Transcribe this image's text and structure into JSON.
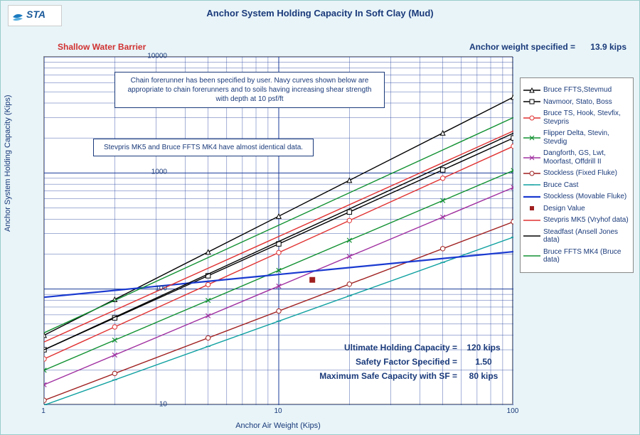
{
  "title": "Anchor System Holding Capacity In Soft Clay (Mud)",
  "subtitle_left": "Shallow Water Barrier",
  "anchor_weight": {
    "label": "Anchor weight specified =",
    "value": "13.9 kips"
  },
  "y_label": "Anchor System Holding Capacity (Kips)",
  "x_label": "Anchor Air Weight (Kips)",
  "textbox1": "Chain forerunner has been specified by user.  Navy curves shown below are appropriate to chain forerunners and to soils having increasing shear strength with depth at 10 psf/ft",
  "textbox2": "Stevpris MK5 and Bruce FFTS MK4 have almost identical data.",
  "results": {
    "r1": {
      "label": "Ultimate Holding Capacity =",
      "value": "120 kips"
    },
    "r2": {
      "label": "Safety Factor Specified =",
      "value": "1.50"
    },
    "r3": {
      "label": "Maximum Safe Capacity with SF =",
      "value": "80 kips"
    }
  },
  "chart": {
    "type": "line_loglog",
    "xlim": [
      1,
      100
    ],
    "ylim": [
      10,
      10000
    ],
    "xticks": [
      1,
      10,
      100
    ],
    "yticks": [
      10,
      100,
      1000,
      10000
    ],
    "background_color": "#ffffff",
    "grid_color_major": "#1a3a9a",
    "grid_color_minor": "#1a3a9a",
    "grid_width_major": 1.0,
    "grid_width_minor": 0.4,
    "line_width": 1.4,
    "series": [
      {
        "id": "bruce_ffts_stevmud",
        "label": "Bruce FFTS,Stevmud",
        "color": "#000000",
        "marker": "triangle",
        "y1": 40,
        "y100": 4500
      },
      {
        "id": "navmoor_stato_boss",
        "label": "Navmoor, Stato, Boss",
        "color": "#000000",
        "marker": "square",
        "y1": 30,
        "y100": 2000
      },
      {
        "id": "bruce_ts",
        "label": "Bruce TS, Hook, Stevfix, Stevpris",
        "color": "#e03030",
        "marker": "circle",
        "y1": 25,
        "y100": 1700
      },
      {
        "id": "flipper_delta",
        "label": "Flipper Delta, Stevin, Stevdig",
        "color": "#109030",
        "marker": "x",
        "y1": 20,
        "y100": 1050
      },
      {
        "id": "dangforth",
        "label": "Dangforth, GS, Lwt, Moorfast, Offdrill II",
        "color": "#a030a0",
        "marker": "x",
        "y1": 15,
        "y100": 750
      },
      {
        "id": "stockless_fixed",
        "label": "Stockless (Fixed Fluke)",
        "color": "#a02020",
        "marker": "circle",
        "y1": 11,
        "y100": 380
      },
      {
        "id": "bruce_cast",
        "label": "Bruce Cast",
        "color": "#10a0a0",
        "marker": "dash",
        "y1": 10,
        "y100": 280
      },
      {
        "id": "stockless_movable",
        "label": "Stockless (Movable Fluke)",
        "color": "#1a3ad0",
        "marker": "none",
        "y1": 85,
        "y100": 210,
        "heavy": true
      },
      {
        "id": "design_value",
        "label": "Design Value",
        "color": "#a02020",
        "marker": "point_only",
        "px": 13.9,
        "py": 120
      },
      {
        "id": "stevpris_mk5",
        "label": "Stevpris MK5 (Vryhof data)",
        "color": "#e03030",
        "marker": "none",
        "y1": 35,
        "y100": 2300
      },
      {
        "id": "steadfast",
        "label": "Steadfast (Ansell Jones data)",
        "color": "#000000",
        "marker": "none",
        "y1": 30,
        "y100": 2200
      },
      {
        "id": "bruce_ffts_mk4",
        "label": "Bruce FFTS MK4 (Bruce data)",
        "color": "#109030",
        "marker": "none",
        "y1": 42,
        "y100": 3000
      }
    ]
  }
}
